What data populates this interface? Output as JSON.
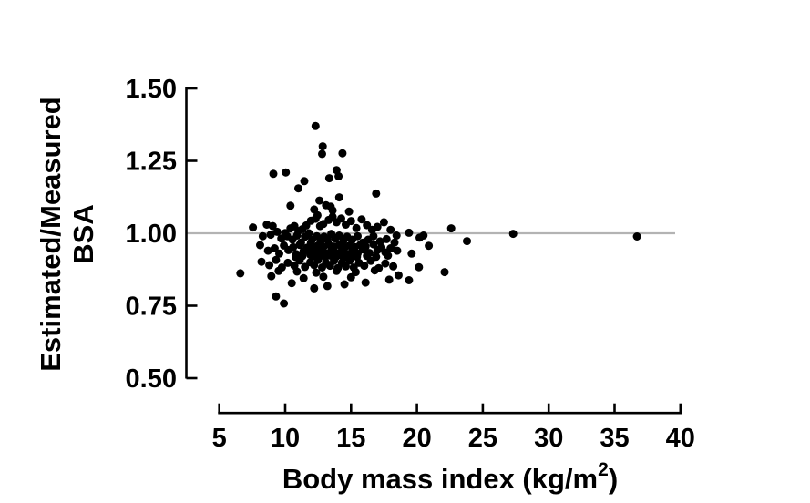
{
  "figure": {
    "background_color": "#ffffff",
    "axis_color": "#000000",
    "marker_color": "#000000"
  },
  "chart_data": {
    "type": "scatter",
    "title": "",
    "xlabel_main": "Body mass index (kg/m",
    "xlabel_sup": "2",
    "xlabel_close": ")",
    "ylabel_line1": "Estimated/Measured",
    "ylabel_line2": "BSA",
    "xlim": [
      5,
      40
    ],
    "ylim": [
      0.5,
      1.5
    ],
    "grid": false,
    "legend": "none",
    "x_ticks": {
      "values": [
        5,
        10,
        15,
        20,
        25,
        30,
        35,
        40
      ],
      "labels": [
        "5",
        "10",
        "15",
        "20",
        "25",
        "30",
        "35",
        "40"
      ]
    },
    "y_ticks": {
      "values": [
        1.5,
        1.25,
        1.0,
        0.75,
        0.5
      ],
      "labels": [
        "1.50",
        "1.25",
        "1.00",
        "0.75",
        "0.50"
      ]
    },
    "reference_line": {
      "y": 1.0,
      "color": "#b3b3b3"
    },
    "marker": {
      "shape": "circle",
      "radius": 4.5,
      "color": "#000000"
    },
    "points": [
      [
        12.3,
        1.37
      ],
      [
        12.85,
        1.3
      ],
      [
        12.8,
        1.274
      ],
      [
        14.35,
        1.276
      ],
      [
        13.9,
        1.218
      ],
      [
        10.05,
        1.21
      ],
      [
        9.1,
        1.205
      ],
      [
        14.05,
        1.197
      ],
      [
        13.35,
        1.19
      ],
      [
        11.45,
        1.18
      ],
      [
        11.0,
        1.155
      ],
      [
        16.9,
        1.137
      ],
      [
        14.1,
        1.124
      ],
      [
        12.6,
        1.113
      ],
      [
        13.1,
        1.097
      ],
      [
        10.4,
        1.095
      ],
      [
        12.2,
        1.082
      ],
      [
        13.45,
        1.092
      ],
      [
        14.85,
        1.075
      ],
      [
        13.6,
        1.079
      ],
      [
        7.55,
        1.02
      ],
      [
        8.6,
        1.03
      ],
      [
        9.05,
        1.025
      ],
      [
        9.4,
        1.005
      ],
      [
        10.0,
        1.001
      ],
      [
        10.4,
        1.017
      ],
      [
        10.7,
        1.025
      ],
      [
        11.0,
        1.008
      ],
      [
        11.3,
        1.014
      ],
      [
        11.6,
        1.027
      ],
      [
        11.95,
        1.043
      ],
      [
        12.3,
        1.05
      ],
      [
        12.65,
        1.025
      ],
      [
        12.9,
        1.032
      ],
      [
        13.3,
        1.046
      ],
      [
        13.6,
        1.057
      ],
      [
        13.9,
        1.038
      ],
      [
        14.25,
        1.051
      ],
      [
        14.6,
        1.03
      ],
      [
        15.0,
        1.042
      ],
      [
        15.4,
        1.018
      ],
      [
        15.8,
        1.048
      ],
      [
        16.2,
        1.028
      ],
      [
        16.6,
        1.012
      ],
      [
        17.0,
        1.022
      ],
      [
        17.5,
        1.038
      ],
      [
        18.0,
        1.012
      ],
      [
        12.45,
        1.062
      ],
      [
        22.6,
        1.017
      ],
      [
        8.3,
        0.99
      ],
      [
        8.9,
        0.995
      ],
      [
        9.7,
        0.982
      ],
      [
        10.15,
        0.99
      ],
      [
        10.55,
        0.978
      ],
      [
        10.9,
        0.992
      ],
      [
        11.2,
        0.968
      ],
      [
        11.5,
        0.988
      ],
      [
        11.8,
        1.0
      ],
      [
        12.05,
        0.978
      ],
      [
        12.4,
        0.99
      ],
      [
        12.7,
        0.972
      ],
      [
        12.95,
        0.988
      ],
      [
        13.2,
        0.978
      ],
      [
        13.5,
        0.998
      ],
      [
        13.8,
        0.982
      ],
      [
        14.1,
        0.992
      ],
      [
        14.4,
        0.972
      ],
      [
        14.7,
        0.988
      ],
      [
        15.1,
        0.978
      ],
      [
        15.5,
        0.99
      ],
      [
        15.9,
        0.968
      ],
      [
        16.3,
        0.978
      ],
      [
        16.7,
        0.99
      ],
      [
        17.2,
        0.972
      ],
      [
        17.7,
        0.98
      ],
      [
        18.3,
        0.968
      ],
      [
        18.45,
        0.992
      ],
      [
        19.4,
        1.002
      ],
      [
        20.2,
        0.985
      ],
      [
        11.95,
        0.966
      ],
      [
        8.1,
        0.959
      ],
      [
        8.7,
        0.94
      ],
      [
        9.2,
        0.948
      ],
      [
        9.55,
        0.93
      ],
      [
        9.9,
        0.958
      ],
      [
        10.25,
        0.942
      ],
      [
        10.6,
        0.952
      ],
      [
        10.85,
        0.928
      ],
      [
        11.1,
        0.96
      ],
      [
        11.4,
        0.938
      ],
      [
        11.65,
        0.95
      ],
      [
        11.9,
        0.926
      ],
      [
        12.1,
        0.948
      ],
      [
        12.3,
        0.936
      ],
      [
        12.5,
        0.958
      ],
      [
        12.7,
        0.94
      ],
      [
        12.9,
        0.952
      ],
      [
        13.1,
        0.93
      ],
      [
        13.3,
        0.962
      ],
      [
        13.5,
        0.942
      ],
      [
        13.7,
        0.954
      ],
      [
        13.9,
        0.932
      ],
      [
        14.1,
        0.96
      ],
      [
        14.3,
        0.94
      ],
      [
        14.5,
        0.95
      ],
      [
        14.7,
        0.928
      ],
      [
        14.9,
        0.958
      ],
      [
        15.1,
        0.942
      ],
      [
        15.3,
        0.952
      ],
      [
        15.5,
        0.93
      ],
      [
        15.7,
        0.96
      ],
      [
        15.9,
        0.944
      ],
      [
        16.1,
        0.954
      ],
      [
        16.4,
        0.932
      ],
      [
        16.7,
        0.962
      ],
      [
        17.0,
        0.942
      ],
      [
        17.3,
        0.952
      ],
      [
        17.6,
        0.934
      ],
      [
        18.0,
        0.948
      ],
      [
        18.5,
        0.94
      ],
      [
        12.2,
        0.921
      ],
      [
        12.6,
        0.924
      ],
      [
        13.05,
        0.918
      ],
      [
        13.45,
        0.923
      ],
      [
        13.85,
        0.919
      ],
      [
        14.25,
        0.924
      ],
      [
        14.65,
        0.917
      ],
      [
        15.05,
        0.922
      ],
      [
        15.45,
        0.919
      ],
      [
        11.3,
        0.921
      ],
      [
        10.8,
        0.918
      ],
      [
        16.2,
        0.922
      ],
      [
        16.9,
        0.919
      ],
      [
        17.8,
        0.923
      ],
      [
        20.9,
        0.957
      ],
      [
        6.6,
        0.862
      ],
      [
        8.2,
        0.902
      ],
      [
        8.8,
        0.89
      ],
      [
        9.3,
        0.908
      ],
      [
        9.75,
        0.882
      ],
      [
        10.2,
        0.898
      ],
      [
        10.7,
        0.888
      ],
      [
        11.1,
        0.906
      ],
      [
        11.5,
        0.884
      ],
      [
        11.9,
        0.9
      ],
      [
        12.2,
        0.89
      ],
      [
        12.5,
        0.908
      ],
      [
        12.8,
        0.882
      ],
      [
        13.1,
        0.898
      ],
      [
        13.4,
        0.888
      ],
      [
        13.7,
        0.905
      ],
      [
        14.0,
        0.88
      ],
      [
        14.3,
        0.898
      ],
      [
        14.6,
        0.886
      ],
      [
        14.9,
        0.906
      ],
      [
        15.2,
        0.882
      ],
      [
        15.6,
        0.898
      ],
      [
        16.0,
        0.888
      ],
      [
        16.5,
        0.905
      ],
      [
        17.1,
        0.88
      ],
      [
        17.6,
        0.896
      ],
      [
        18.2,
        0.886
      ],
      [
        19.6,
        0.93
      ],
      [
        20.15,
        0.883
      ],
      [
        22.1,
        0.866
      ],
      [
        9.5,
        0.87
      ],
      [
        10.9,
        0.868
      ],
      [
        12.35,
        0.864
      ],
      [
        13.9,
        0.87
      ],
      [
        15.35,
        0.866
      ],
      [
        16.8,
        0.872
      ],
      [
        9.3,
        0.782
      ],
      [
        9.9,
        0.758
      ],
      [
        12.2,
        0.81
      ],
      [
        10.5,
        0.828
      ],
      [
        13.2,
        0.818
      ],
      [
        14.5,
        0.824
      ],
      [
        16.1,
        0.83
      ],
      [
        17.9,
        0.84
      ],
      [
        19.4,
        0.838
      ],
      [
        11.4,
        0.845
      ],
      [
        12.9,
        0.85
      ],
      [
        15.0,
        0.848
      ],
      [
        8.95,
        0.852
      ],
      [
        18.6,
        0.855
      ],
      [
        23.8,
        0.973
      ],
      [
        27.3,
        0.998
      ],
      [
        36.7,
        0.989
      ],
      [
        20.5,
        0.992
      ]
    ]
  }
}
